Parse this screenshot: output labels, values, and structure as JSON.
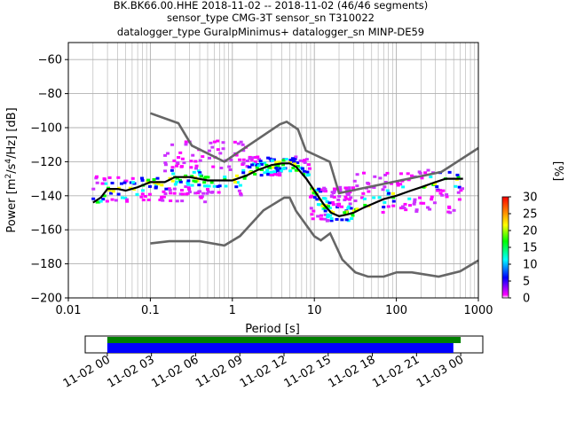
{
  "chart_data": {
    "type": "heatmap",
    "title_lines": [
      "BK.BK66.00.HHE   2018-11-02 -- 2018-11-02  (46/46 segments)",
      "sensor_type CMG-3T sensor_sn T310022",
      "datalogger_type GuralpMinimus+ datalogger_sn MINP-DE59"
    ],
    "xlabel": "Period [s]",
    "ylabel_main": "Power [m",
    "ylabel_sup1": "2",
    "ylabel_mid": "/s",
    "ylabel_sup2": "4",
    "ylabel_end": "/Hz] [dB]",
    "x_scale": "log",
    "xlim": [
      0.01,
      1000
    ],
    "ylim": [
      -200,
      -50
    ],
    "x_ticks": [
      0.01,
      0.1,
      1,
      10,
      100,
      1000
    ],
    "x_tick_labels": [
      "0.01",
      "0.1",
      "1",
      "10",
      "100",
      "1000"
    ],
    "y_ticks": [
      -200,
      -180,
      -160,
      -140,
      -120,
      -100,
      -80,
      -60
    ],
    "y_tick_labels": [
      "−200",
      "−180",
      "−160",
      "−140",
      "−120",
      "−100",
      "−80",
      "−60"
    ],
    "grid": true,
    "colorbar": {
      "label": "[%]",
      "range": [
        0,
        30
      ],
      "ticks": [
        0,
        5,
        10,
        15,
        20,
        25,
        30
      ],
      "tick_labels": [
        "0",
        "5",
        "10",
        "15",
        "20",
        "25",
        "30"
      ],
      "colors": [
        "#ffffff",
        "#ff00ff",
        "#0000ff",
        "#00ffff",
        "#00ff00",
        "#ffff00",
        "#ff8000",
        "#ff0000"
      ]
    },
    "noise_model_color": "#666666",
    "mean_color": "#000000",
    "nhnm": {
      "period": [
        0.1,
        0.22,
        0.32,
        0.8,
        3.8,
        4.6,
        6.3,
        7.9,
        15.4,
        20,
        354.8,
        1000
      ],
      "power": [
        -91.5,
        -97.4,
        -110.5,
        -120,
        -98,
        -96.5,
        -101,
        -113.5,
        -120,
        -138.5,
        -126,
        -112
      ]
    },
    "nlnm": {
      "period": [
        0.1,
        0.17,
        0.4,
        0.8,
        1.24,
        2.4,
        4.3,
        5,
        6,
        10,
        12,
        15.6,
        21.9,
        31.6,
        45,
        70,
        101,
        154,
        328,
        600,
        1000
      ],
      "power": [
        -168,
        -166.7,
        -166.7,
        -169.2,
        -163.7,
        -148.6,
        -141.1,
        -141.1,
        -149,
        -163.8,
        -166.2,
        -162.1,
        -177.5,
        -185,
        -187.5,
        -187.5,
        -185,
        -185,
        -187.5,
        -184.4,
        -178
      ]
    },
    "mean_curve": {
      "period": [
        0.02,
        0.025,
        0.03,
        0.04,
        0.05,
        0.07,
        0.1,
        0.15,
        0.2,
        0.3,
        0.5,
        0.8,
        1,
        1.5,
        2,
        3,
        4,
        5,
        6,
        8,
        10,
        13,
        16,
        20,
        25,
        30,
        40,
        50,
        70,
        100,
        150,
        200,
        300,
        400,
        500,
        650
      ],
      "power": [
        -144,
        -141,
        -136,
        -136,
        -137,
        -135,
        -132,
        -132,
        -129,
        -129,
        -131,
        -131,
        -131,
        -128,
        -125,
        -122,
        -121,
        -121,
        -123,
        -130,
        -137,
        -145,
        -150,
        -152,
        -151,
        -150,
        -147,
        -145,
        -142,
        -140,
        -137,
        -135,
        -132,
        -130,
        -130,
        -130
      ]
    },
    "density_clouds": [
      {
        "period": [
          0.02,
          0.6
        ],
        "power_upper": -128,
        "power_lower": -144
      },
      {
        "period": [
          0.15,
          1.5
        ],
        "power_upper": -107,
        "power_lower": -140
      },
      {
        "period": [
          1.5,
          9
        ],
        "power_upper": -117,
        "power_lower": -128
      },
      {
        "period": [
          9,
          30
        ],
        "power_upper": -135,
        "power_lower": -155
      },
      {
        "period": [
          30,
          650
        ],
        "power_upper": -125,
        "power_lower": -150
      }
    ],
    "timeline": {
      "xlim_hours": [
        -1.5,
        25.5
      ],
      "ticks_hours": [
        0,
        3,
        6,
        9,
        12,
        15,
        18,
        21,
        24
      ],
      "tick_labels": [
        "11-02 00",
        "11-02 03",
        "11-02 06",
        "11-02 09",
        "11-02 12",
        "11-02 15",
        "11-02 18",
        "11-02 21",
        "11-03 00"
      ],
      "bars": [
        {
          "color": "#008000",
          "start_hours": 0,
          "end_hours": 24.0
        },
        {
          "color": "#0000ff",
          "start_hours": 0,
          "end_hours": 23.5
        }
      ]
    }
  }
}
